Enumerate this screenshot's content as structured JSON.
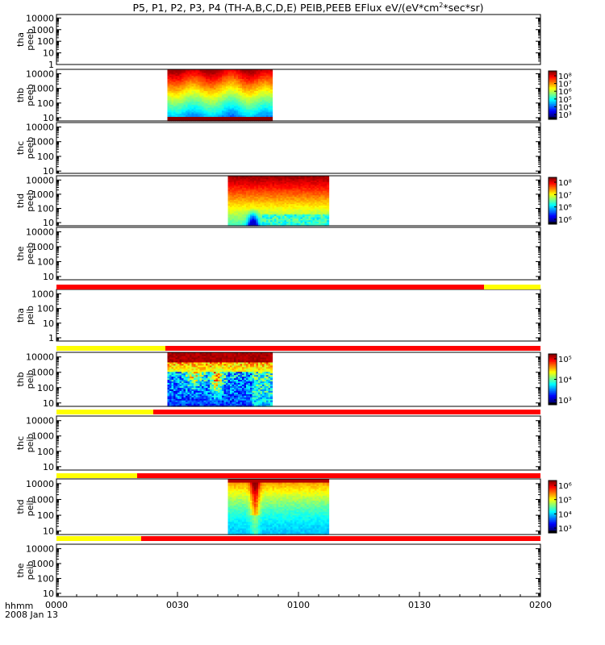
{
  "chart_data": {
    "type": "heatmap",
    "title": "P5, P1, P2, P3, P4 (TH-A,B,C,D,E) PEIB,PEEB EFlux eV/(eV*cm²*sec*sr)",
    "x_axis": {
      "ticks": [
        "0000",
        "0030",
        "0100",
        "0130",
        "0200"
      ],
      "label_line1": "hhmm",
      "label_line2": "2008 Jan 13",
      "range_minutes": [
        0,
        120
      ]
    },
    "panels": [
      {
        "label1": "tha",
        "label2": "peeb",
        "y_ticks": [
          "10000",
          "1000",
          "100",
          "10",
          "1"
        ],
        "y_log_range": [
          1,
          20000
        ],
        "data": null,
        "colorbar": null
      },
      {
        "label1": "thb",
        "label2": "peeb",
        "y_ticks": [
          "10000",
          "1000",
          "100",
          "10"
        ],
        "y_log_range": [
          6,
          20000
        ],
        "data": {
          "t_start": 27.5,
          "t_end": 53.5,
          "scale": "electron-b"
        },
        "colorbar": {
          "ticks": [
            "10⁸",
            "10⁷",
            "10⁶",
            "10⁵",
            "10⁴",
            "10³"
          ],
          "log_range": [
            3,
            8
          ]
        }
      },
      {
        "label1": "thc",
        "label2": "peeb",
        "y_ticks": [
          "10000",
          "1000",
          "100",
          "10"
        ],
        "y_log_range": [
          7,
          20000
        ],
        "data": null,
        "colorbar": null
      },
      {
        "label1": "thd",
        "label2": "peeb",
        "y_ticks": [
          "10000",
          "1000",
          "100",
          "10"
        ],
        "y_log_range": [
          6,
          20000
        ],
        "data": {
          "t_start": 42.5,
          "t_end": 67.5,
          "scale": "electron-d"
        },
        "colorbar": {
          "ticks": [
            "10⁸",
            "10⁷",
            "10⁶",
            "10⁶"
          ],
          "log_range": [
            5.5,
            8.3
          ]
        }
      },
      {
        "label1": "the",
        "label2": "peeb",
        "y_ticks": [
          "10000",
          "1000",
          "100",
          "10"
        ],
        "y_log_range": [
          6,
          20000
        ],
        "data": null,
        "colorbar": null
      },
      {
        "label1": "tha",
        "label2": "peib",
        "y_ticks": [
          "1000",
          "100",
          "10",
          "1"
        ],
        "y_log_range": [
          0.6,
          2000
        ],
        "data": null,
        "colorbar": null
      },
      {
        "label1": "thb",
        "label2": "peib",
        "y_ticks": [
          "10000",
          "1000",
          "100",
          "10"
        ],
        "y_log_range": [
          6,
          20000
        ],
        "data": {
          "t_start": 27.5,
          "t_end": 53.5,
          "scale": "ion-b"
        },
        "colorbar": {
          "ticks": [
            "10⁵",
            "10⁴",
            "10³"
          ],
          "log_range": [
            2.8,
            5.6
          ]
        }
      },
      {
        "label1": "thc",
        "label2": "peib",
        "y_ticks": [
          "10000",
          "1000",
          "100",
          "10"
        ],
        "y_log_range": [
          6,
          20000
        ],
        "data": null,
        "colorbar": null
      },
      {
        "label1": "thd",
        "label2": "peib",
        "y_ticks": [
          "10000",
          "1000",
          "100",
          "10"
        ],
        "y_log_range": [
          6,
          20000
        ],
        "data": {
          "t_start": 42.5,
          "t_end": 67.5,
          "scale": "ion-d"
        },
        "colorbar": {
          "ticks": [
            "10⁶",
            "10⁵",
            "10⁴",
            "10³"
          ],
          "log_range": [
            2.8,
            6.2
          ]
        }
      },
      {
        "label1": "the",
        "label2": "peib",
        "y_ticks": [
          "10000",
          "1000",
          "100",
          "10"
        ],
        "y_log_range": [
          6,
          20000
        ],
        "data": null,
        "colorbar": null
      }
    ],
    "mode_bars": [
      {
        "segments": [
          {
            "t_start": 0,
            "t_end": 106,
            "color": "#ff0000"
          },
          {
            "t_start": 106,
            "t_end": 120,
            "color": "#ffff00"
          }
        ]
      },
      {
        "segments": [
          {
            "t_start": 0,
            "t_end": 27,
            "color": "#ffff00"
          },
          {
            "t_start": 27,
            "t_end": 120,
            "color": "#ff0000"
          }
        ]
      },
      {
        "segments": [
          {
            "t_start": 0,
            "t_end": 24,
            "color": "#ffff00"
          },
          {
            "t_start": 24,
            "t_end": 120,
            "color": "#ff0000"
          }
        ]
      },
      {
        "segments": [
          {
            "t_start": 0,
            "t_end": 20,
            "color": "#ffff00"
          },
          {
            "t_start": 20,
            "t_end": 120,
            "color": "#ff0000"
          }
        ]
      },
      {
        "segments": [
          {
            "t_start": 0,
            "t_end": 21,
            "color": "#ffff00"
          },
          {
            "t_start": 21,
            "t_end": 120,
            "color": "#ff0000"
          }
        ]
      }
    ]
  }
}
